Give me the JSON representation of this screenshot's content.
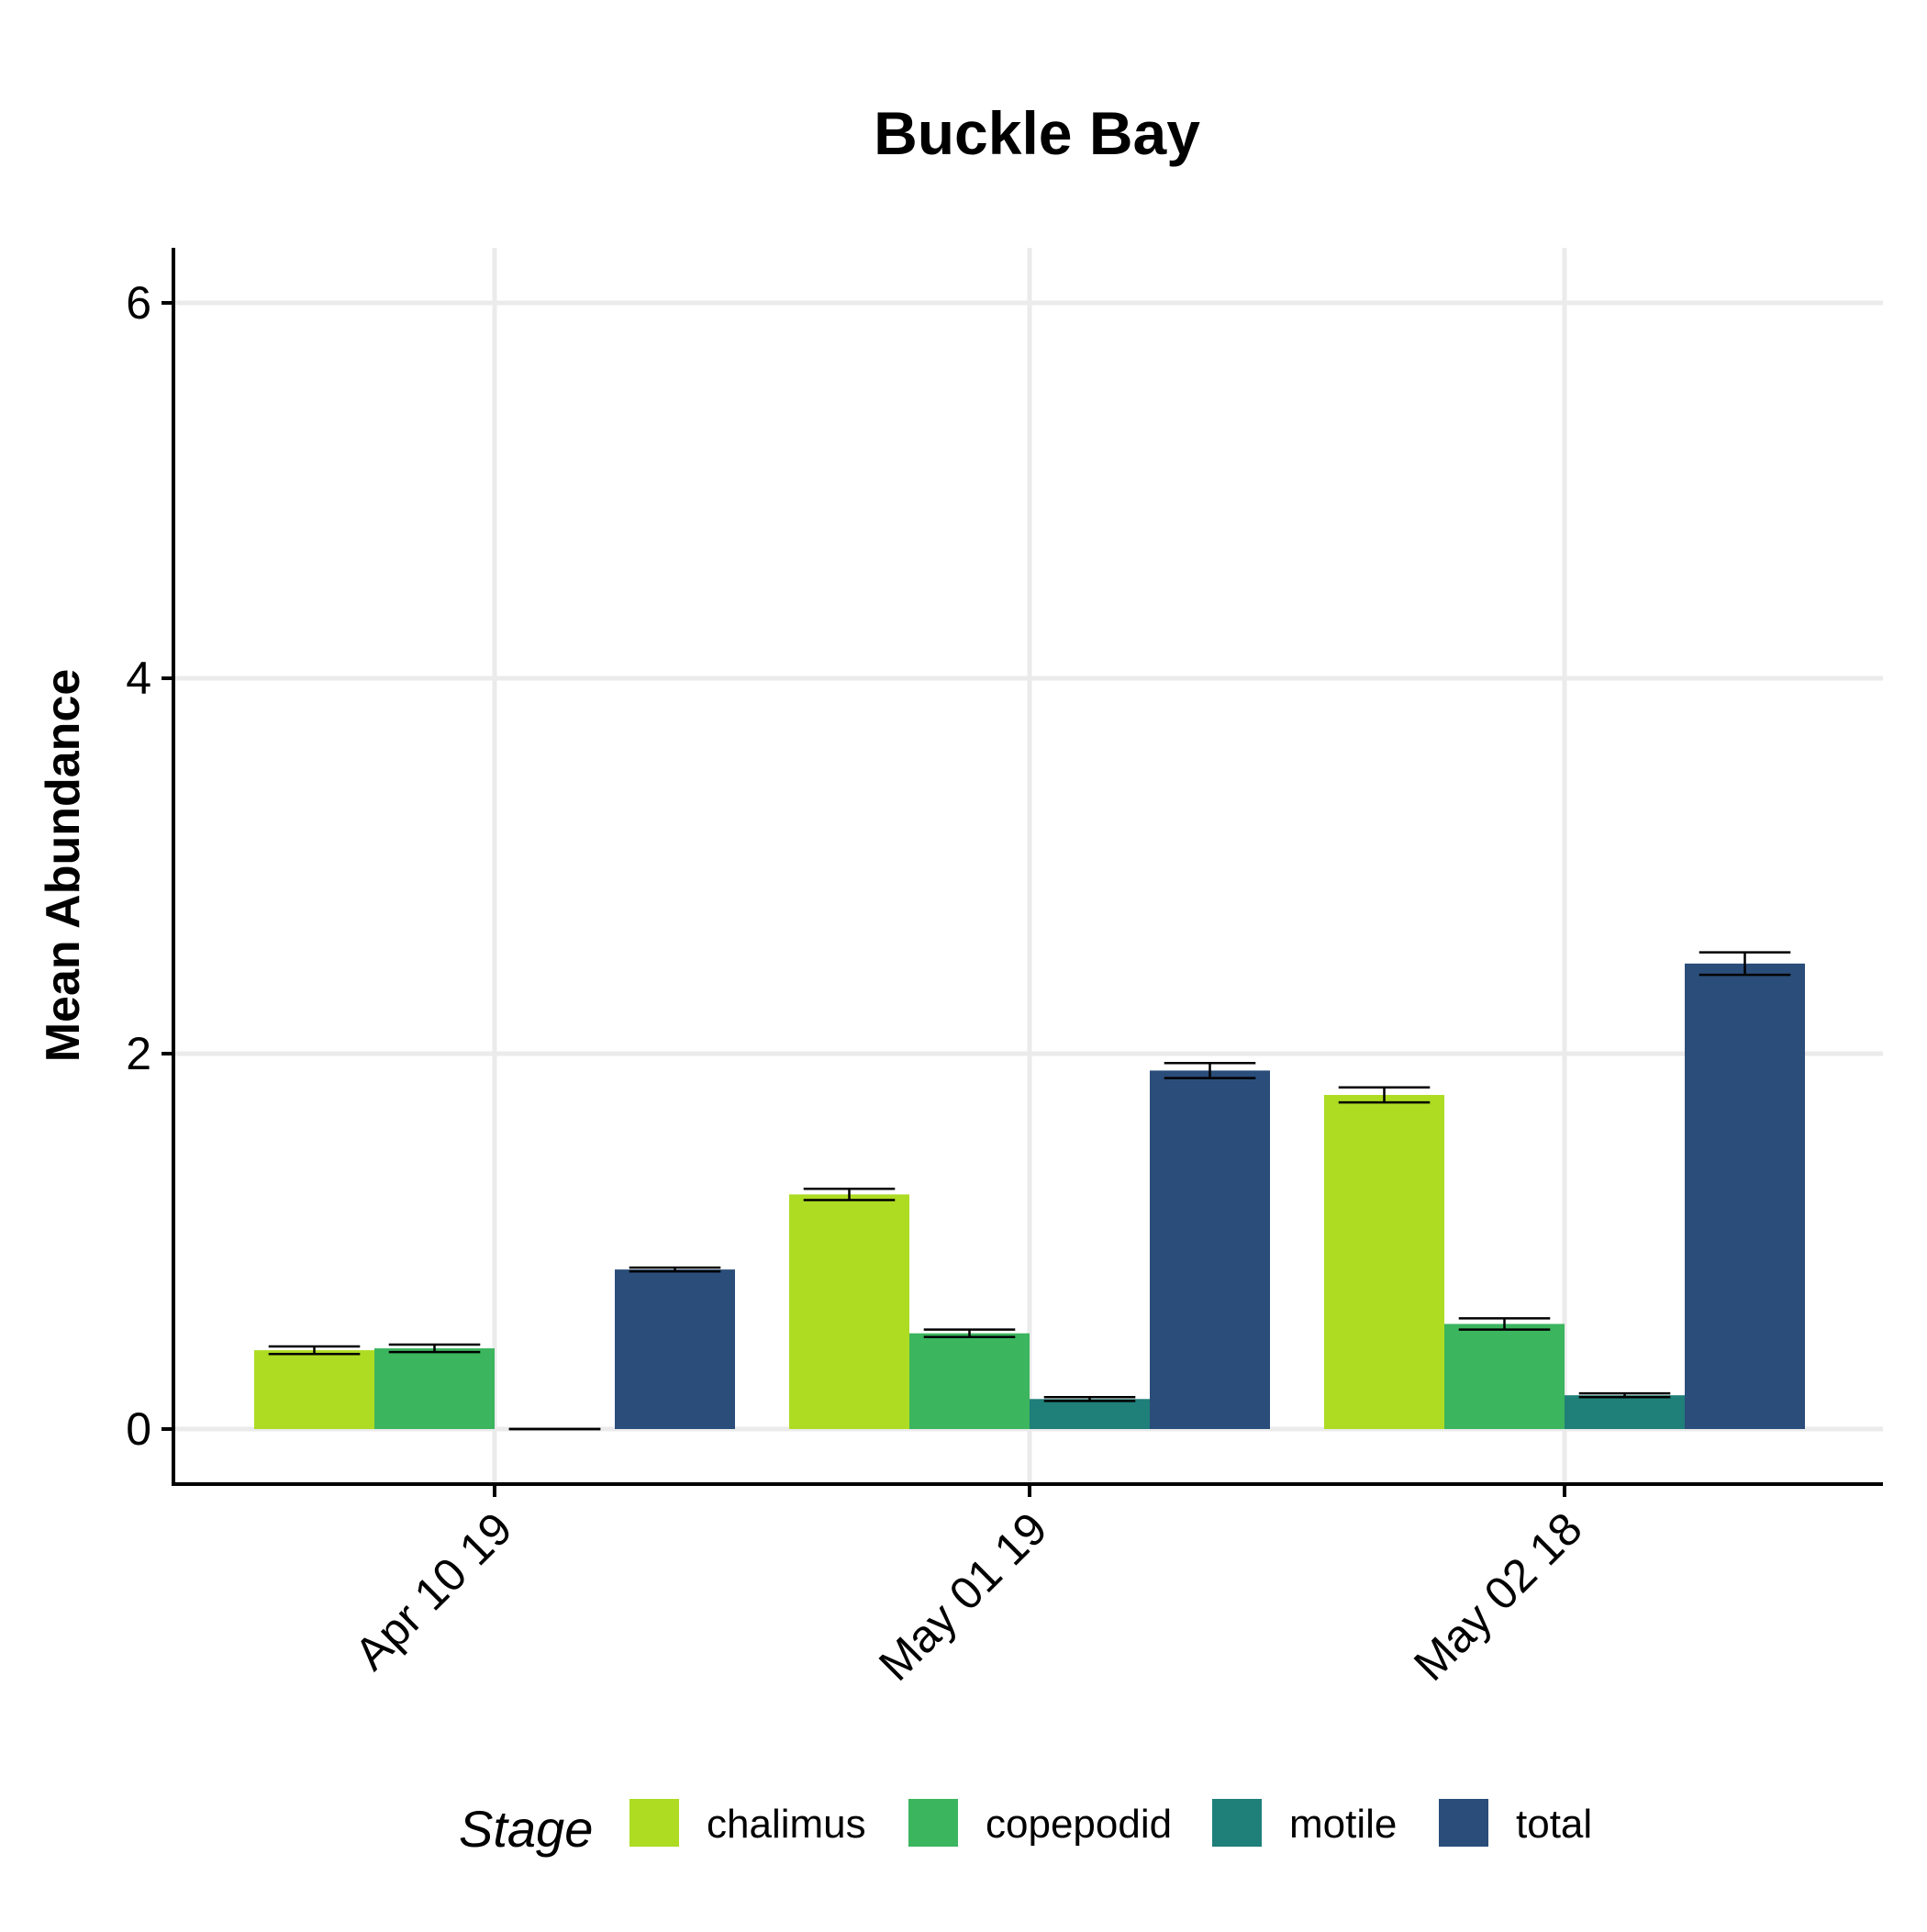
{
  "chart_data": {
    "type": "bar",
    "title": "Buckle Bay",
    "xlabel": "",
    "ylabel": "Mean Abundance",
    "categories": [
      "Apr 10 19",
      "May 01 19",
      "May 02 18"
    ],
    "ylim": [
      -0.3,
      6.3
    ],
    "yticks": [
      0,
      2,
      4,
      6
    ],
    "grid": true,
    "legend": {
      "title": "Stage",
      "position": "bottom"
    },
    "series": [
      {
        "name": "chalimus",
        "color": "#addc23",
        "values": [
          0.42,
          1.25,
          1.78
        ],
        "error": [
          0.02,
          0.03,
          0.04
        ]
      },
      {
        "name": "copepodid",
        "color": "#3bb55e",
        "values": [
          0.43,
          0.51,
          0.56
        ],
        "error": [
          0.02,
          0.02,
          0.03
        ]
      },
      {
        "name": "motile",
        "color": "#1f7f79",
        "values": [
          0.0,
          0.16,
          0.18
        ],
        "error": [
          0.0,
          0.01,
          0.01
        ]
      },
      {
        "name": "total",
        "color": "#2a4d7a",
        "values": [
          0.85,
          1.91,
          2.48
        ],
        "error": [
          0.01,
          0.04,
          0.06
        ]
      }
    ]
  }
}
